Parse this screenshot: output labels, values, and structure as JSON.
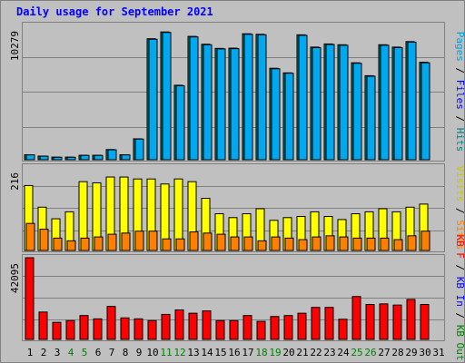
{
  "title": "Daily usage for September 2021",
  "chart_data": [
    {
      "type": "bar",
      "title": "Daily usage for September 2021",
      "ylabel_parts": [
        {
          "text": "Pages",
          "color": "#00a0d8"
        },
        {
          "text": " / ",
          "color": "#000000"
        },
        {
          "text": "Files",
          "color": "#0000ff"
        },
        {
          "text": " / ",
          "color": "#000000"
        },
        {
          "text": "Hits",
          "color": "#008080"
        }
      ],
      "ymax_label": "10279",
      "ylim": [
        0,
        10279
      ],
      "categories": [
        "1",
        "2",
        "3",
        "4",
        "5",
        "6",
        "7",
        "8",
        "9",
        "10",
        "11",
        "12",
        "13",
        "14",
        "15",
        "16",
        "17",
        "18",
        "19",
        "20",
        "21",
        "22",
        "23",
        "24",
        "25",
        "26",
        "27",
        "28",
        "29",
        "30",
        "31"
      ],
      "series": [
        {
          "name": "Hits",
          "color": "#008080",
          "values": [
            380,
            280,
            200,
            200,
            340,
            340,
            780,
            380,
            1600,
            9260,
            9780,
            5700,
            9440,
            8840,
            8520,
            8540,
            9640,
            9600,
            7000,
            6650,
            9560,
            8620,
            8860,
            8800,
            7420,
            6430,
            8800,
            8620,
            9040,
            7460,
            0
          ]
        },
        {
          "name": "Files",
          "color": "#00a8f0",
          "values": [
            370,
            270,
            190,
            190,
            330,
            330,
            760,
            370,
            1580,
            9220,
            9740,
            5660,
            9400,
            8800,
            8480,
            8500,
            9600,
            9560,
            6960,
            6620,
            9520,
            8580,
            8820,
            8760,
            7380,
            6390,
            8760,
            8580,
            9000,
            7420,
            0
          ]
        }
      ]
    },
    {
      "type": "bar",
      "ylabel_parts": [
        {
          "text": "Visits",
          "color": "#c8c800"
        },
        {
          "text": " / ",
          "color": "#000000"
        },
        {
          "text": "Sites",
          "color": "#ff8000"
        }
      ],
      "ymax_label": "216",
      "ylim": [
        0,
        216
      ],
      "categories": [
        "1",
        "2",
        "3",
        "4",
        "5",
        "6",
        "7",
        "8",
        "9",
        "10",
        "11",
        "12",
        "13",
        "14",
        "15",
        "16",
        "17",
        "18",
        "19",
        "20",
        "21",
        "22",
        "23",
        "24",
        "25",
        "26",
        "27",
        "28",
        "29",
        "30",
        "31"
      ],
      "series": [
        {
          "name": "Visits",
          "color": "#ffff00",
          "values": [
            168,
            112,
            82,
            100,
            178,
            175,
            190,
            190,
            185,
            185,
            172,
            185,
            178,
            135,
            95,
            85,
            95,
            108,
            78,
            85,
            88,
            100,
            88,
            80,
            95,
            100,
            108,
            100,
            112,
            120,
            0
          ]
        },
        {
          "name": "Sites",
          "color": "#ff8000",
          "values": [
            70,
            55,
            32,
            25,
            32,
            35,
            42,
            45,
            50,
            50,
            30,
            30,
            48,
            45,
            42,
            35,
            35,
            25,
            35,
            32,
            28,
            35,
            38,
            35,
            32,
            32,
            32,
            28,
            38,
            50,
            0
          ]
        }
      ]
    },
    {
      "type": "bar",
      "ylabel_parts": [
        {
          "text": "KB F",
          "color": "#ff0000"
        },
        {
          "text": " / ",
          "color": "#000000"
        },
        {
          "text": "KB In",
          "color": "#0000ff"
        },
        {
          "text": " / ",
          "color": "#000000"
        },
        {
          "text": "KB Out",
          "color": "#008000"
        }
      ],
      "ymax_label": "42095",
      "ylim": [
        0,
        42095
      ],
      "categories": [
        "1",
        "2",
        "3",
        "4",
        "5",
        "6",
        "7",
        "8",
        "9",
        "10",
        "11",
        "12",
        "13",
        "14",
        "15",
        "16",
        "17",
        "18",
        "19",
        "20",
        "21",
        "22",
        "23",
        "24",
        "25",
        "26",
        "27",
        "28",
        "29",
        "30",
        "31"
      ],
      "series": [
        {
          "name": "KB F",
          "color": "#ff0000",
          "values": [
            42095,
            14100,
            8800,
            9700,
            12300,
            10600,
            17000,
            11100,
            10600,
            9700,
            12900,
            15200,
            13500,
            14700,
            9700,
            9700,
            12300,
            9300,
            11800,
            12300,
            13500,
            16500,
            16500,
            10400,
            22100,
            18000,
            18300,
            17700,
            20600,
            18000,
            0
          ]
        }
      ]
    }
  ],
  "weekend_days": [
    4,
    5,
    11,
    12,
    18,
    19,
    25,
    26
  ]
}
